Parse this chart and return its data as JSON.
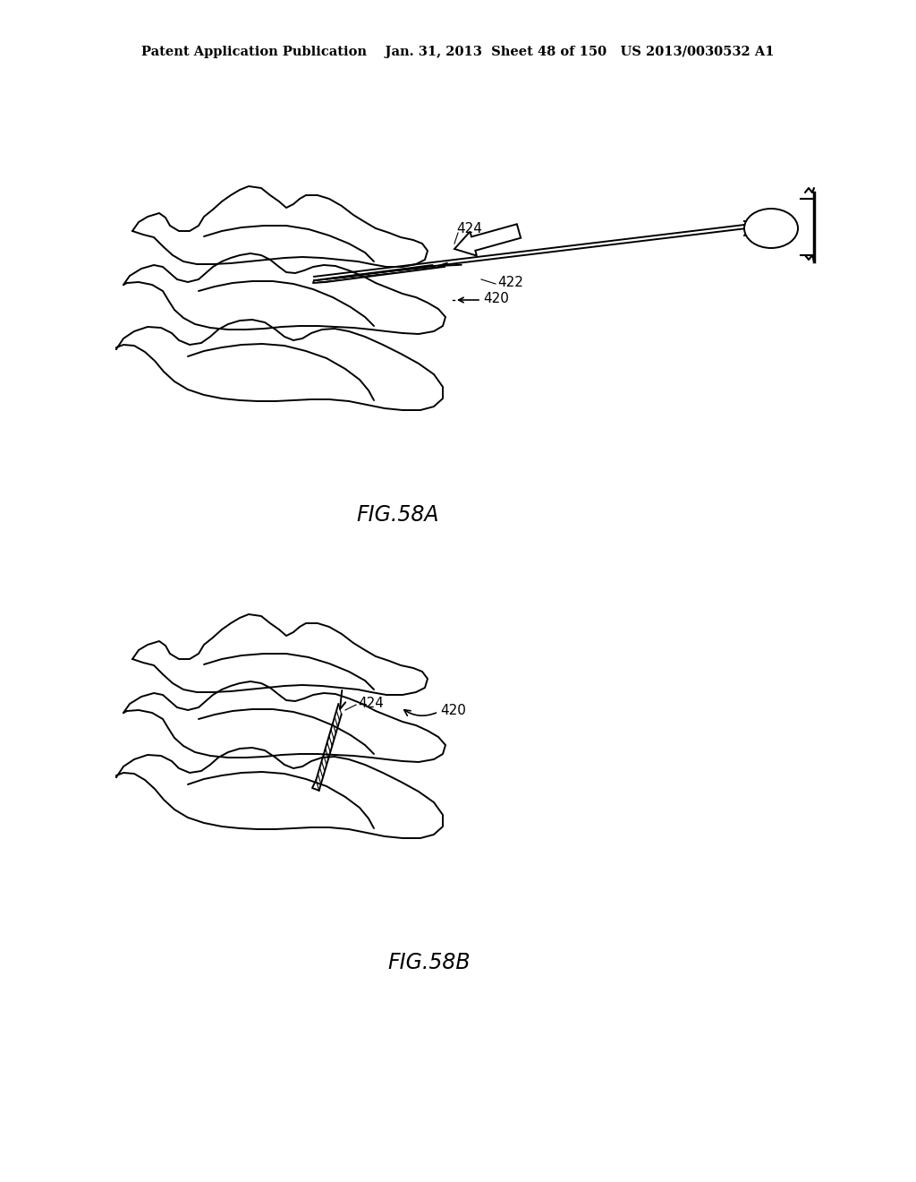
{
  "bg_color": "#ffffff",
  "line_color": "#000000",
  "header_text": "Patent Application Publication    Jan. 31, 2013  Sheet 48 of 150   US 2013/0030532 A1",
  "fig_label_a": "FIG.58A",
  "fig_label_b": "FIG.58B",
  "header_fontsize": 10.5,
  "fig_label_fontsize": 17,
  "anno_fontsize": 11
}
